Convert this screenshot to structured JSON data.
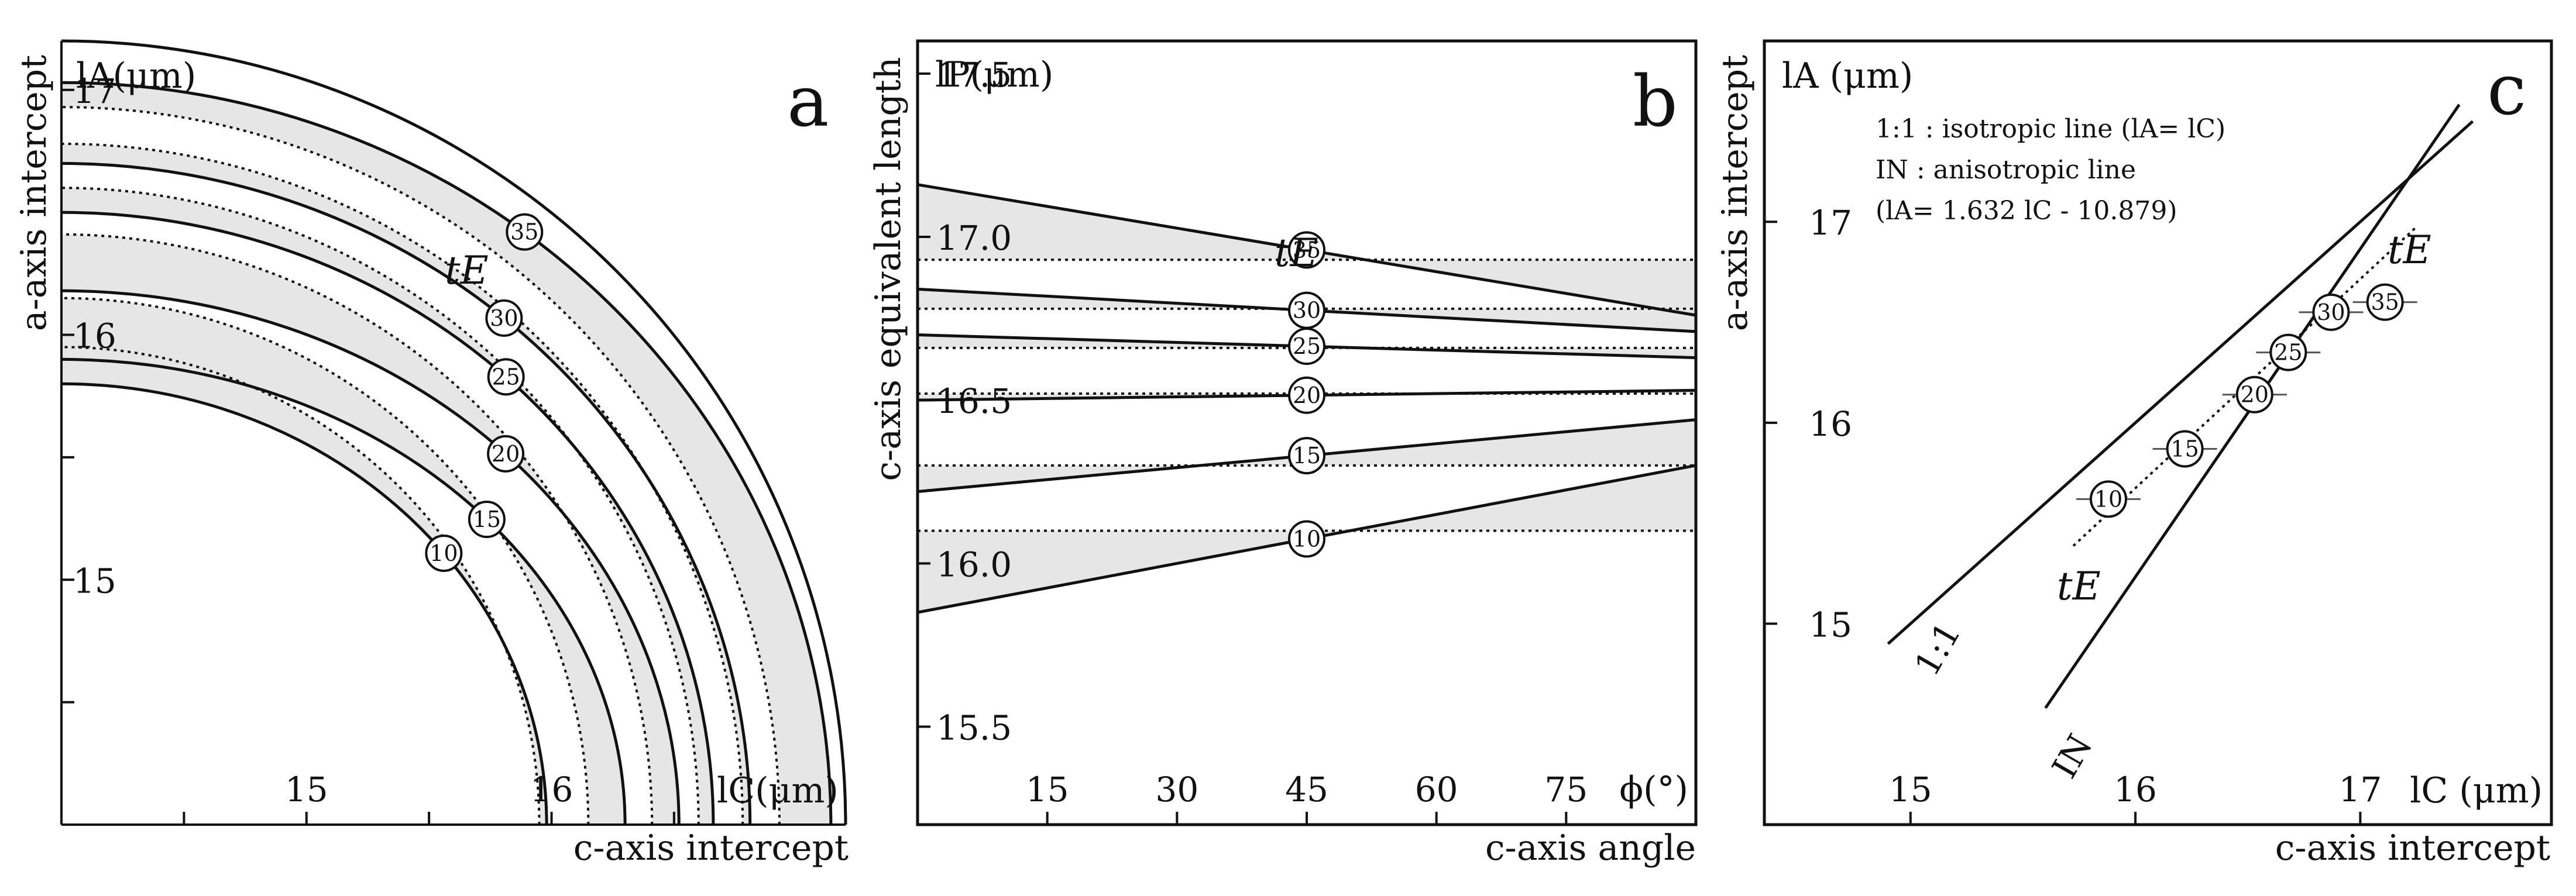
{
  "chart_data": [
    {
      "panel": "a",
      "type": "line",
      "xlabel": "c-axis intercept",
      "ylabel": "a-axis intercept",
      "x_unit_label": "lC(μm)",
      "y_unit_label": "lA(μm)",
      "xlim": [
        14,
        17.2
      ],
      "ylim": [
        14,
        17.2
      ],
      "x_ticks": [
        15,
        16
      ],
      "y_ticks": [
        15,
        16,
        17
      ],
      "te_label": "tE",
      "series": [
        {
          "name": "10",
          "lc": 15.98,
          "la": 15.8,
          "dotted_radius": 15.95
        },
        {
          "name": "15",
          "lc": 16.3,
          "la": 15.9,
          "dotted_radius": 16.15
        },
        {
          "name": "20",
          "lc": 16.52,
          "la": 16.18,
          "dotted_radius": 16.41
        },
        {
          "name": "25",
          "lc": 16.66,
          "la": 16.5,
          "dotted_radius": 16.6
        },
        {
          "name": "30",
          "lc": 16.81,
          "la": 16.7,
          "dotted_radius": 16.78
        },
        {
          "name": "35",
          "lc": 17.14,
          "la": 17.03,
          "dotted_radius": 16.93
        }
      ],
      "outer_arc_radius": 17.2
    },
    {
      "panel": "b",
      "type": "line",
      "xlabel": "c-axis angle",
      "ylabel": "c-axis equivalent length",
      "x_unit_label": "ϕ(°)",
      "y_unit_label": "lP(μm)",
      "xlim": [
        0,
        90
      ],
      "ylim": [
        15.2,
        17.6
      ],
      "x_ticks": [
        15,
        30,
        45,
        60,
        75
      ],
      "y_ticks": [
        15.5,
        16.0,
        16.5,
        17.0,
        17.5
      ],
      "marker_x": 45,
      "te_label": "tE",
      "series": [
        {
          "name": "10",
          "y0": 15.85,
          "y90": 16.3,
          "dotted_level": 16.1
        },
        {
          "name": "15",
          "y0": 16.22,
          "y90": 16.44,
          "dotted_level": 16.3
        },
        {
          "name": "20",
          "y0": 16.5,
          "y90": 16.53,
          "dotted_level": 16.52
        },
        {
          "name": "25",
          "y0": 16.7,
          "y90": 16.63,
          "dotted_level": 16.66
        },
        {
          "name": "30",
          "y0": 16.84,
          "y90": 16.71,
          "dotted_level": 16.78
        },
        {
          "name": "35",
          "y0": 17.16,
          "y90": 16.76,
          "dotted_level": 16.93
        }
      ]
    },
    {
      "panel": "c",
      "type": "scatter",
      "xlabel": "c-axis intercept",
      "ylabel": "a-axis intercept",
      "x_unit_label": "lC (μm)",
      "y_unit_label": "lA (μm)",
      "xlim": [
        14.35,
        17.85
      ],
      "ylim": [
        14.0,
        17.9
      ],
      "x_ticks": [
        15,
        16,
        17
      ],
      "y_ticks": [
        15,
        16,
        17
      ],
      "legend": [
        "1:1 : isotropic line (lA= lC)",
        "IN : anisotropic line",
        "(lA= 1.632 lC - 10.879)"
      ],
      "line_labels": {
        "isotropic": "1:1",
        "anisotropic": "IN"
      },
      "isotropic_line": {
        "x": [
          14.9,
          17.5
        ],
        "slope": 1,
        "intercept": 0
      },
      "anisotropic_line": {
        "x": [
          15.6,
          17.44
        ],
        "slope": 1.632,
        "intercept": -10.879
      },
      "te_label": "tE",
      "points": [
        {
          "name": "10",
          "x": 15.88,
          "y": 15.62
        },
        {
          "name": "15",
          "x": 16.22,
          "y": 15.87
        },
        {
          "name": "20",
          "x": 16.53,
          "y": 16.14
        },
        {
          "name": "25",
          "x": 16.68,
          "y": 16.35
        },
        {
          "name": "30",
          "x": 16.87,
          "y": 16.55
        },
        {
          "name": "35",
          "x": 17.11,
          "y": 16.6
        }
      ]
    }
  ],
  "panel_letters": {
    "a": "a",
    "b": "b",
    "c": "c"
  }
}
